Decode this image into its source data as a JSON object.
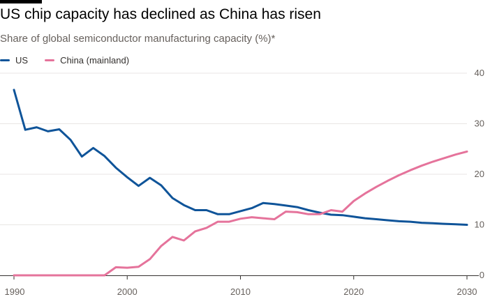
{
  "header": {
    "title": "US chip capacity has declined as China has risen",
    "subtitle": "Share of global semiconductor manufacturing capacity (%)*"
  },
  "colors": {
    "us": "#0f5499",
    "china": "#e5739b",
    "grid": "#e8e6e4",
    "axis": "#33302e"
  },
  "chart_data": {
    "type": "line",
    "title": "US chip capacity has declined as China has risen",
    "subtitle": "Share of global semiconductor manufacturing capacity (%)*",
    "xlabel": "",
    "ylabel": "",
    "xlim": [
      1990,
      2030
    ],
    "ylim": [
      0,
      40
    ],
    "x_ticks": [
      1990,
      2000,
      2010,
      2020,
      2030
    ],
    "y_ticks": [
      0,
      10,
      20,
      30,
      40
    ],
    "grid": true,
    "legend_position": "top-left",
    "series": [
      {
        "name": "US",
        "key": "us",
        "x": [
          1990,
          1991,
          1992,
          1993,
          1994,
          1995,
          1996,
          1997,
          1998,
          1999,
          2000,
          2001,
          2002,
          2003,
          2004,
          2005,
          2006,
          2007,
          2008,
          2009,
          2010,
          2011,
          2012,
          2013,
          2014,
          2015,
          2016,
          2017,
          2018,
          2019,
          2020,
          2021,
          2022,
          2023,
          2024,
          2025,
          2026,
          2027,
          2028,
          2029,
          2030
        ],
        "values": [
          36.7,
          28.8,
          29.3,
          28.5,
          28.9,
          26.8,
          23.5,
          25.2,
          23.6,
          21.3,
          19.4,
          17.7,
          19.3,
          17.8,
          15.3,
          13.9,
          12.9,
          12.9,
          12.1,
          12.1,
          12.7,
          13.3,
          14.3,
          14.1,
          13.8,
          13.5,
          12.9,
          12.4,
          12.0,
          11.9,
          11.6,
          11.3,
          11.1,
          10.9,
          10.7,
          10.6,
          10.4,
          10.3,
          10.2,
          10.1,
          10.0
        ]
      },
      {
        "name": "China (mainland)",
        "key": "china",
        "x": [
          1990,
          1991,
          1992,
          1993,
          1994,
          1995,
          1996,
          1997,
          1998,
          1999,
          2000,
          2001,
          2002,
          2003,
          2004,
          2005,
          2006,
          2007,
          2008,
          2009,
          2010,
          2011,
          2012,
          2013,
          2014,
          2015,
          2016,
          2017,
          2018,
          2019,
          2020,
          2021,
          2022,
          2023,
          2024,
          2025,
          2026,
          2027,
          2028,
          2029,
          2030
        ],
        "values": [
          0,
          0,
          0,
          0,
          0,
          0,
          0,
          0,
          0,
          1.6,
          1.5,
          1.7,
          3.2,
          5.8,
          7.6,
          6.9,
          8.7,
          9.4,
          10.6,
          10.6,
          11.2,
          11.5,
          11.3,
          11.1,
          12.6,
          12.5,
          12.1,
          12.1,
          12.9,
          12.6,
          14.7,
          16.2,
          17.5,
          18.7,
          19.8,
          20.8,
          21.7,
          22.5,
          23.2,
          23.9,
          24.5
        ]
      }
    ]
  }
}
